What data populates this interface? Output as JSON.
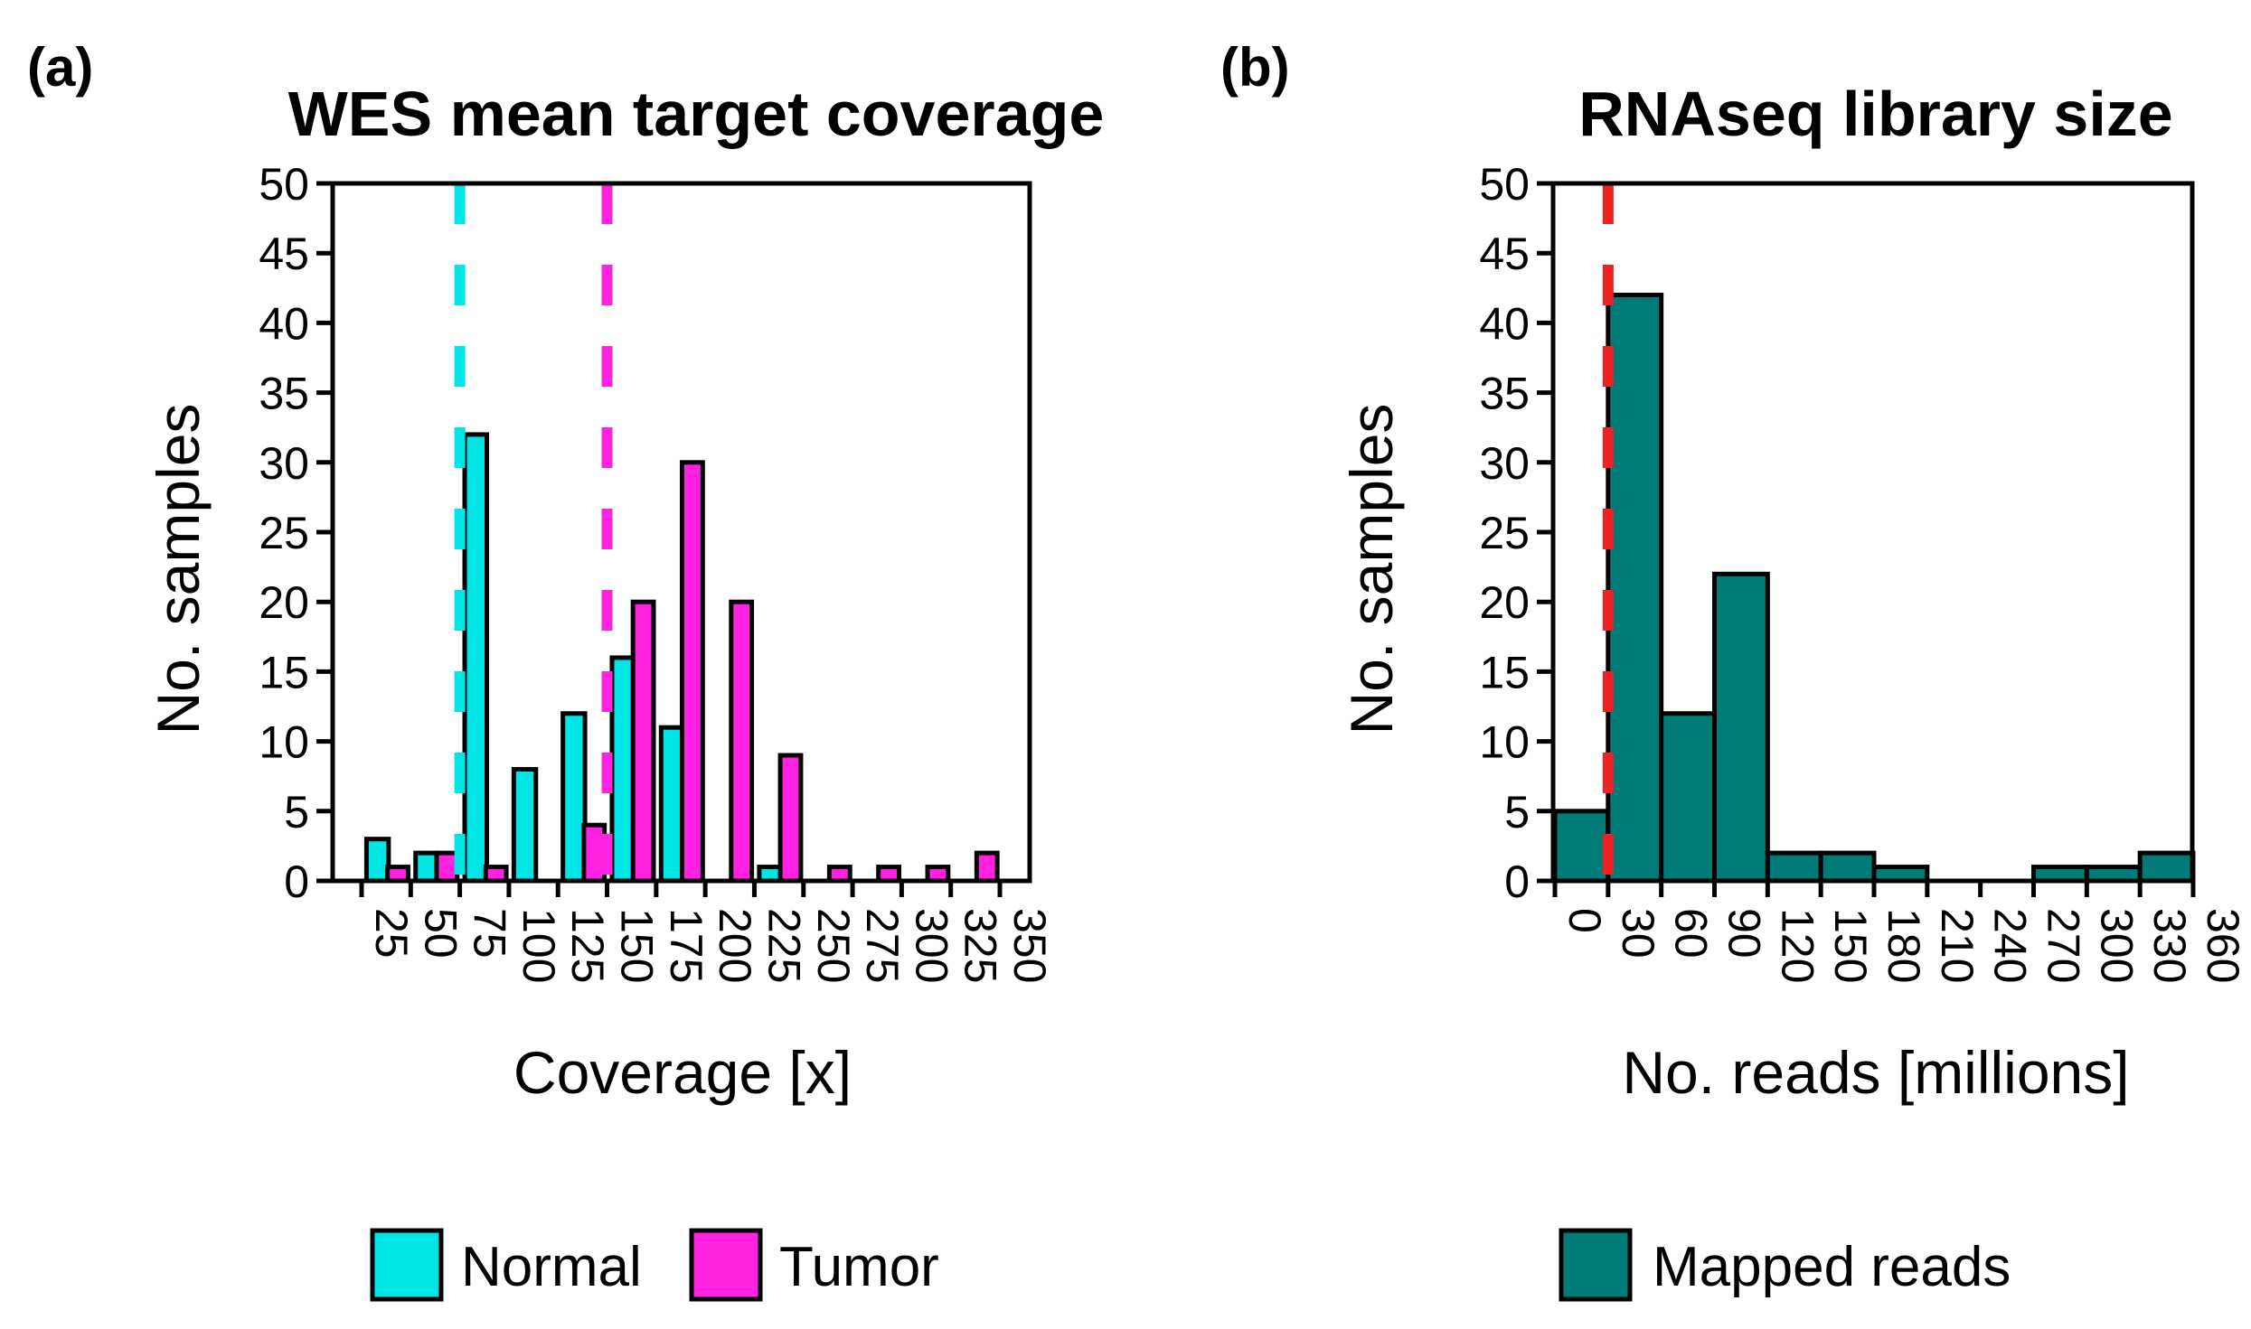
{
  "chart_data": [
    {
      "panel_label": "(a)",
      "type": "bar",
      "title": "WES mean target coverage",
      "xlabel": "Coverage [x]",
      "ylabel": "No. samples",
      "ylim": [
        0,
        50
      ],
      "yticks": [
        "0",
        "5",
        "10",
        "15",
        "20",
        "25",
        "30",
        "35",
        "40",
        "45",
        "50"
      ],
      "xlim": [
        25,
        350
      ],
      "xticks": [
        "25",
        "50",
        "75",
        "100",
        "125",
        "150",
        "175",
        "200",
        "225",
        "250",
        "275",
        "300",
        "325",
        "350"
      ],
      "bin_edges": [
        25,
        50,
        75,
        100,
        125,
        150,
        175,
        200,
        225,
        250,
        275,
        300,
        325,
        350
      ],
      "series": [
        {
          "name": "Normal",
          "color": "#00e5e5",
          "values": [
            3,
            2,
            32,
            8,
            12,
            16,
            11,
            0,
            1,
            0,
            0,
            0,
            0
          ]
        },
        {
          "name": "Tumor",
          "color": "#ff22e0",
          "values": [
            1,
            2,
            1,
            0,
            4,
            20,
            30,
            20,
            9,
            1,
            1,
            1,
            2
          ]
        }
      ],
      "reference_lines": [
        {
          "series": "Normal",
          "x": 75,
          "color": "#00e5e5"
        },
        {
          "series": "Tumor",
          "x": 150,
          "color": "#ff22e0"
        }
      ],
      "legend": [
        "Normal",
        "Tumor"
      ],
      "legend_position": "bottom",
      "grid": false
    },
    {
      "panel_label": "(b)",
      "type": "bar",
      "title": "RNAseq library size",
      "xlabel": "No. reads [millions]",
      "ylabel": "No. samples",
      "ylim": [
        0,
        50
      ],
      "yticks": [
        "0",
        "5",
        "10",
        "15",
        "20",
        "25",
        "30",
        "35",
        "40",
        "45",
        "50"
      ],
      "xlim": [
        0,
        360
      ],
      "xticks": [
        "0",
        "30",
        "60",
        "90",
        "120",
        "150",
        "180",
        "210",
        "240",
        "270",
        "300",
        "330",
        "360"
      ],
      "bin_edges": [
        0,
        30,
        60,
        90,
        120,
        150,
        180,
        210,
        240,
        270,
        300,
        330,
        360
      ],
      "series": [
        {
          "name": "Mapped reads",
          "color": "#007b78",
          "values": [
            5,
            42,
            12,
            22,
            2,
            2,
            1,
            0,
            0,
            1,
            1,
            2
          ]
        }
      ],
      "reference_lines": [
        {
          "x": 30,
          "color": "#ee2222"
        }
      ],
      "legend": [
        "Mapped reads"
      ],
      "legend_position": "bottom",
      "grid": false
    }
  ]
}
